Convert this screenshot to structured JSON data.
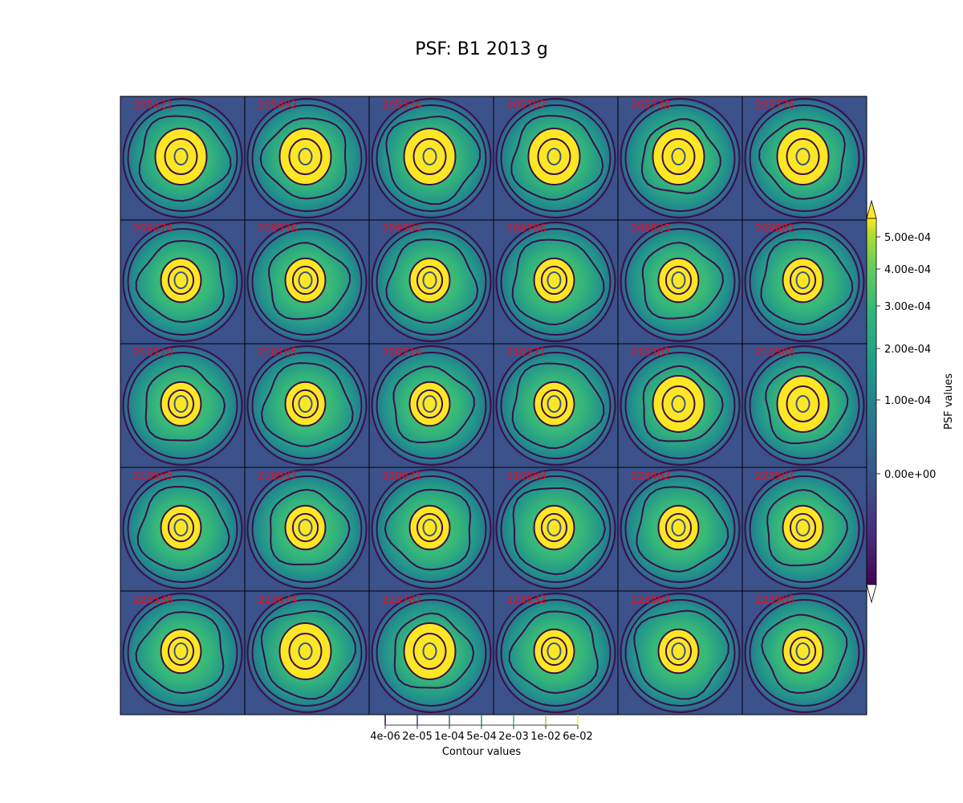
{
  "title": "PSF: B1 2013 g",
  "colors": {
    "background": "#3b528b",
    "panel_border": "#000000",
    "contour_line": "#3a0f4a",
    "contour_inner": "#3b528b",
    "label": "#e8101e",
    "core": "#fde725"
  },
  "chart_data": {
    "type": "heatmap",
    "title": "PSF: B1 2013 g",
    "grid": {
      "rows": 5,
      "cols": 6
    },
    "panels": [
      "205421",
      "205492",
      "205534",
      "205707",
      "205738",
      "205776",
      "209474",
      "209536",
      "209584",
      "209786",
      "209825",
      "209882",
      "210110",
      "210165",
      "210214",
      "210271",
      "210307",
      "210508",
      "210555",
      "210597",
      "210631",
      "210669",
      "223462",
      "223501",
      "223538",
      "223674",
      "223787",
      "223832",
      "223869",
      "223905"
    ],
    "colorbar": {
      "label": "PSF values",
      "ticks": [
        "5.00e-04",
        "4.00e-04",
        "3.00e-04",
        "2.00e-04",
        "1.00e-04",
        "0.00e+00"
      ],
      "extend": "both"
    },
    "contour_bar": {
      "label": "Contour values",
      "ticks": [
        "4e-06",
        "2e-05",
        "1e-04",
        "5e-04",
        "2e-03",
        "1e-02",
        "6e-02"
      ]
    }
  }
}
